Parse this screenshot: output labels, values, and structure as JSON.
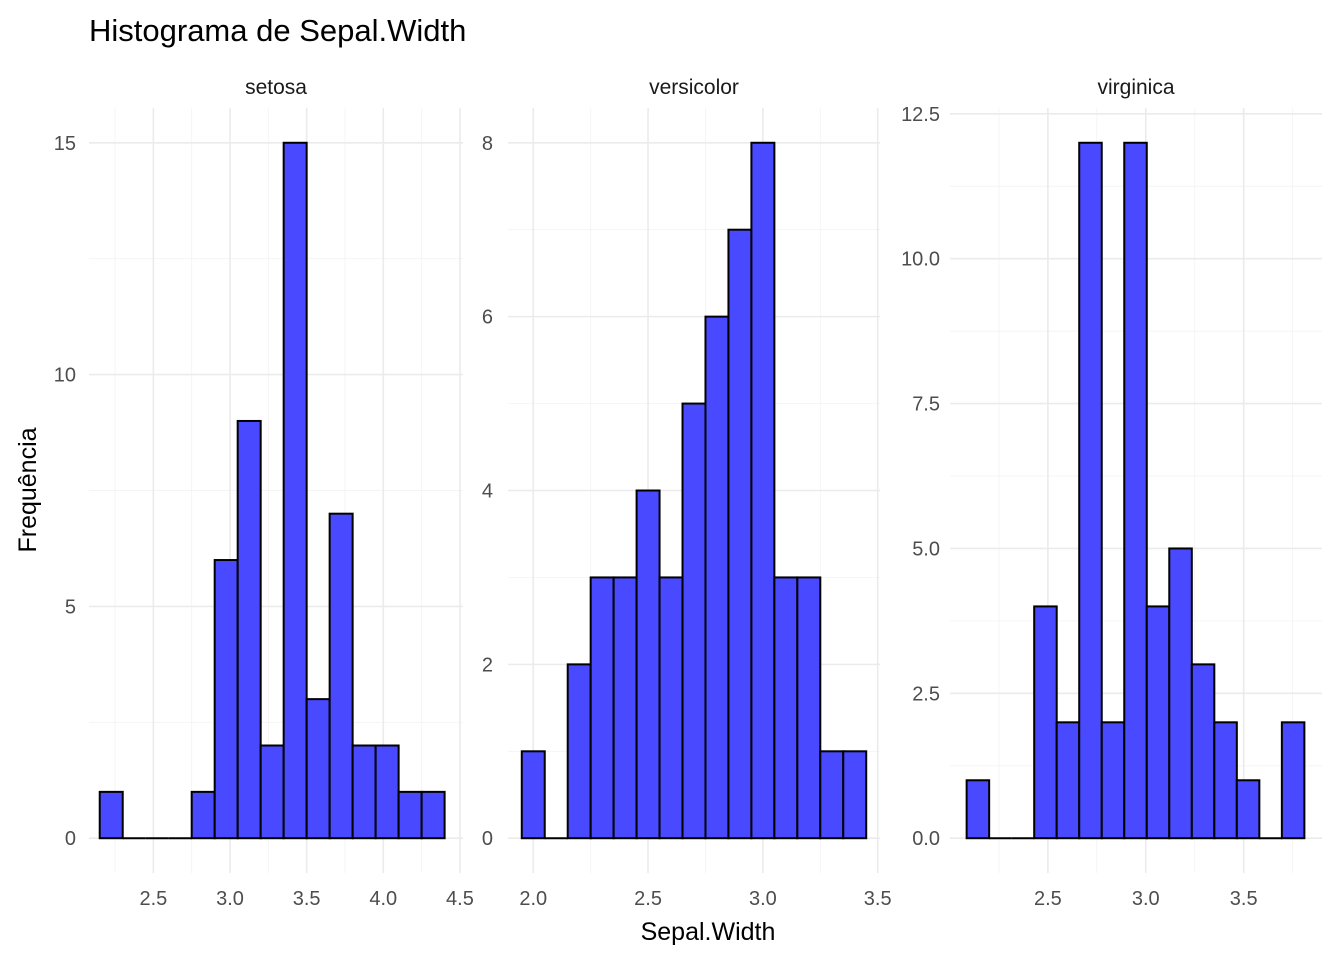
{
  "title": "Histograma de Sepal.Width",
  "xlabel": "Sepal.Width",
  "ylabel": "Frequência",
  "colors": {
    "bar_fill": "#4949ff",
    "bar_stroke": "#000000",
    "grid_major": "#ebebeb",
    "grid_minor": "#f4f4f4"
  },
  "chart_data": [
    {
      "type": "bar",
      "facet": "setosa",
      "bin_width": 0.15,
      "bin_starts": [
        2.15,
        2.3,
        2.45,
        2.6,
        2.75,
        2.9,
        3.05,
        3.2,
        3.35,
        3.5,
        3.65,
        3.8,
        3.95,
        4.1,
        4.25
      ],
      "values": [
        1,
        0,
        0,
        0,
        1,
        6,
        9,
        2,
        15,
        3,
        7,
        2,
        2,
        1,
        1
      ],
      "xlim": [
        2.08,
        4.52
      ],
      "ylim": [
        -0.75,
        15.75
      ],
      "x_ticks": [
        "2.5",
        "3.0",
        "3.5",
        "4.0",
        "4.5"
      ],
      "y_ticks": [
        "0",
        "5",
        "10",
        "15"
      ]
    },
    {
      "type": "bar",
      "facet": "versicolor",
      "bin_width": 0.1,
      "bin_starts": [
        1.95,
        2.05,
        2.15,
        2.25,
        2.35,
        2.45,
        2.55,
        2.65,
        2.75,
        2.85,
        2.95,
        3.05,
        3.15,
        3.25,
        3.35
      ],
      "values": [
        1,
        0,
        2,
        3,
        3,
        4,
        3,
        5,
        6,
        7,
        8,
        3,
        3,
        1,
        1
      ],
      "xlim": [
        1.89,
        3.51
      ],
      "ylim": [
        -0.4,
        8.4
      ],
      "x_ticks": [
        "2.0",
        "2.5",
        "3.0",
        "3.5"
      ],
      "y_ticks": [
        "0",
        "2",
        "4",
        "6",
        "8"
      ]
    },
    {
      "type": "bar",
      "facet": "virginica",
      "bin_width": 0.115,
      "bin_starts": [
        2.085,
        2.2,
        2.315,
        2.43,
        2.545,
        2.66,
        2.775,
        2.89,
        3.005,
        3.12,
        3.235,
        3.35,
        3.465,
        3.58,
        3.695
      ],
      "values": [
        1,
        0,
        0,
        4,
        2,
        12,
        2,
        12,
        4,
        5,
        3,
        2,
        1,
        0,
        2
      ],
      "xlim": [
        2.0,
        3.9
      ],
      "ylim": [
        -0.6,
        12.6
      ],
      "x_ticks": [
        "2.5",
        "3.0",
        "3.5"
      ],
      "y_ticks": [
        "0.0",
        "2.5",
        "5.0",
        "7.5",
        "10.0",
        "12.5"
      ]
    }
  ]
}
